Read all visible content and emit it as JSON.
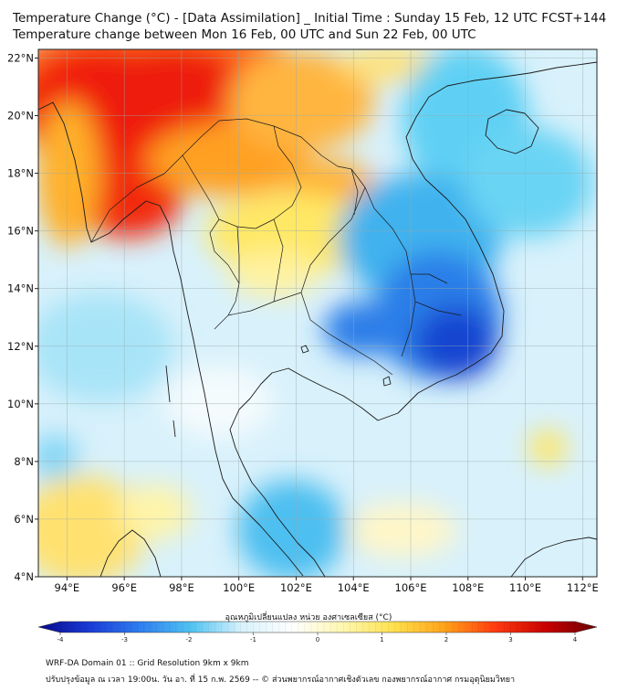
{
  "title": {
    "line1": "Temperature Change (°C) - [Data Assimilation] _ Initial Time : Sunday 15 Feb, 12 UTC FCST+144",
    "line2": "Temperature change between Mon 16 Feb, 00 UTC and Sun 22 Feb, 00 UTC"
  },
  "map": {
    "lat_labels": [
      "22°N",
      "20°N",
      "18°N",
      "16°N",
      "14°N",
      "12°N",
      "10°N",
      "8°N",
      "6°N",
      "4°N"
    ],
    "lon_labels": [
      "94°E",
      "96°E",
      "98°E",
      "100°E",
      "102°E",
      "104°E",
      "106°E",
      "108°E",
      "110°E",
      "112°E"
    ],
    "lat_range": [
      4,
      22.3
    ],
    "lon_range": [
      93,
      112.5
    ]
  },
  "colorbar": {
    "label": "อุณหภูมิเปลี่ยนแปลง หน่วย องศาเซลเซียส (°C)",
    "ticks": [
      "-4",
      "-3",
      "-2",
      "-1",
      "0",
      "1",
      "2",
      "3",
      "4"
    ],
    "colors": [
      "#08088a",
      "#1a3bd6",
      "#2f7ef0",
      "#4fc3f2",
      "#d8f2fb",
      "#ffffff",
      "#fff7b0",
      "#ffe14d",
      "#ffa31a",
      "#ff3b10",
      "#c80000",
      "#6a0000"
    ]
  },
  "footer": {
    "line1": "WRF-DA Domain 01 :: Grid Resolution 9km x 9km",
    "line2": "ปรับปรุงข้อมูล ณ เวลา 19:00น. วัน อา. ที่ 15 ก.พ. 2569 -- © ส่วนพยากรณ์อากาศเชิงตัวเลข กองพยากรณ์อากาศ กรมอุตุนิยมวิทยา"
  }
}
